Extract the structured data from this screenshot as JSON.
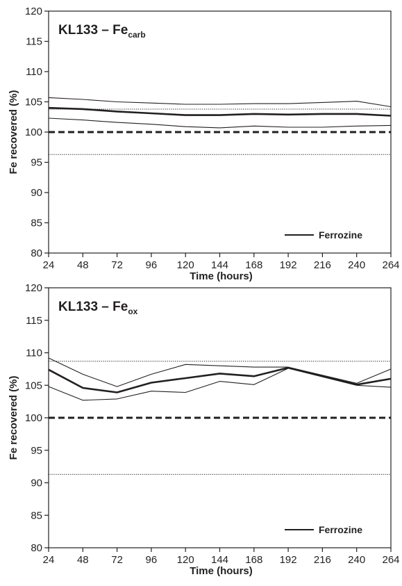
{
  "chart_data": [
    {
      "type": "line",
      "title": "KL133 – Fe",
      "title_subscript": "carb",
      "xlabel": "Time (hours)",
      "ylabel": "Fe recovered (%)",
      "x": [
        24,
        48,
        72,
        96,
        120,
        144,
        168,
        192,
        216,
        240,
        264
      ],
      "xticks": [
        "24",
        "48",
        "72",
        "96",
        "120",
        "144",
        "168",
        "192",
        "216",
        "240",
        "264"
      ],
      "yticks": [
        "80",
        "85",
        "90",
        "95",
        "100",
        "105",
        "110",
        "115",
        "120"
      ],
      "xlim": [
        24,
        264
      ],
      "ylim": [
        80,
        120
      ],
      "grid": false,
      "legend": {
        "placement": "bottom-right",
        "entries": [
          "Ferrozine"
        ]
      },
      "series": [
        {
          "name": "Ferrozine",
          "role": "mean",
          "values": [
            104.0,
            103.8,
            103.4,
            103.1,
            102.8,
            102.8,
            103.0,
            102.9,
            103.0,
            103.0,
            102.7
          ]
        },
        {
          "role": "upper",
          "values": [
            105.7,
            105.4,
            105.0,
            104.8,
            104.6,
            104.6,
            104.7,
            104.7,
            104.9,
            105.1,
            104.2
          ]
        },
        {
          "role": "lower",
          "values": [
            102.3,
            102.0,
            101.6,
            101.3,
            100.9,
            100.7,
            101.0,
            100.8,
            100.8,
            101.0,
            101.1
          ]
        }
      ],
      "reference_lines": [
        {
          "y": 100,
          "style": "dashed-bold"
        },
        {
          "y": 103.8,
          "style": "dotted"
        },
        {
          "y": 96.3,
          "style": "dotted"
        }
      ]
    },
    {
      "type": "line",
      "title": "KL133 – Fe",
      "title_subscript": "ox",
      "xlabel": "Time (hours)",
      "ylabel": "Fe recovered (%)",
      "x": [
        24,
        48,
        72,
        96,
        120,
        144,
        168,
        192,
        216,
        240,
        264
      ],
      "xticks": [
        "24",
        "48",
        "72",
        "96",
        "120",
        "144",
        "168",
        "192",
        "216",
        "240",
        "264"
      ],
      "yticks": [
        "80",
        "85",
        "90",
        "95",
        "100",
        "105",
        "110",
        "115",
        "120"
      ],
      "xlim": [
        24,
        264
      ],
      "ylim": [
        80,
        120
      ],
      "grid": false,
      "legend": {
        "placement": "bottom-right",
        "entries": [
          "Ferrozine"
        ]
      },
      "series": [
        {
          "name": "Ferrozine",
          "role": "mean",
          "values": [
            107.4,
            104.6,
            103.9,
            105.4,
            106.1,
            106.8,
            106.4,
            107.7,
            null,
            105.1,
            106.0
          ]
        },
        {
          "role": "upper",
          "values": [
            109.2,
            106.7,
            104.8,
            106.7,
            108.2,
            108.0,
            107.8,
            107.8,
            null,
            105.3,
            107.5
          ]
        },
        {
          "role": "lower",
          "values": [
            104.8,
            102.7,
            102.9,
            104.1,
            103.9,
            105.6,
            105.1,
            107.6,
            null,
            105.0,
            104.7
          ]
        }
      ],
      "reference_lines": [
        {
          "y": 100,
          "style": "dashed-bold"
        },
        {
          "y": 108.7,
          "style": "dotted"
        },
        {
          "y": 91.3,
          "style": "dotted"
        }
      ]
    }
  ]
}
